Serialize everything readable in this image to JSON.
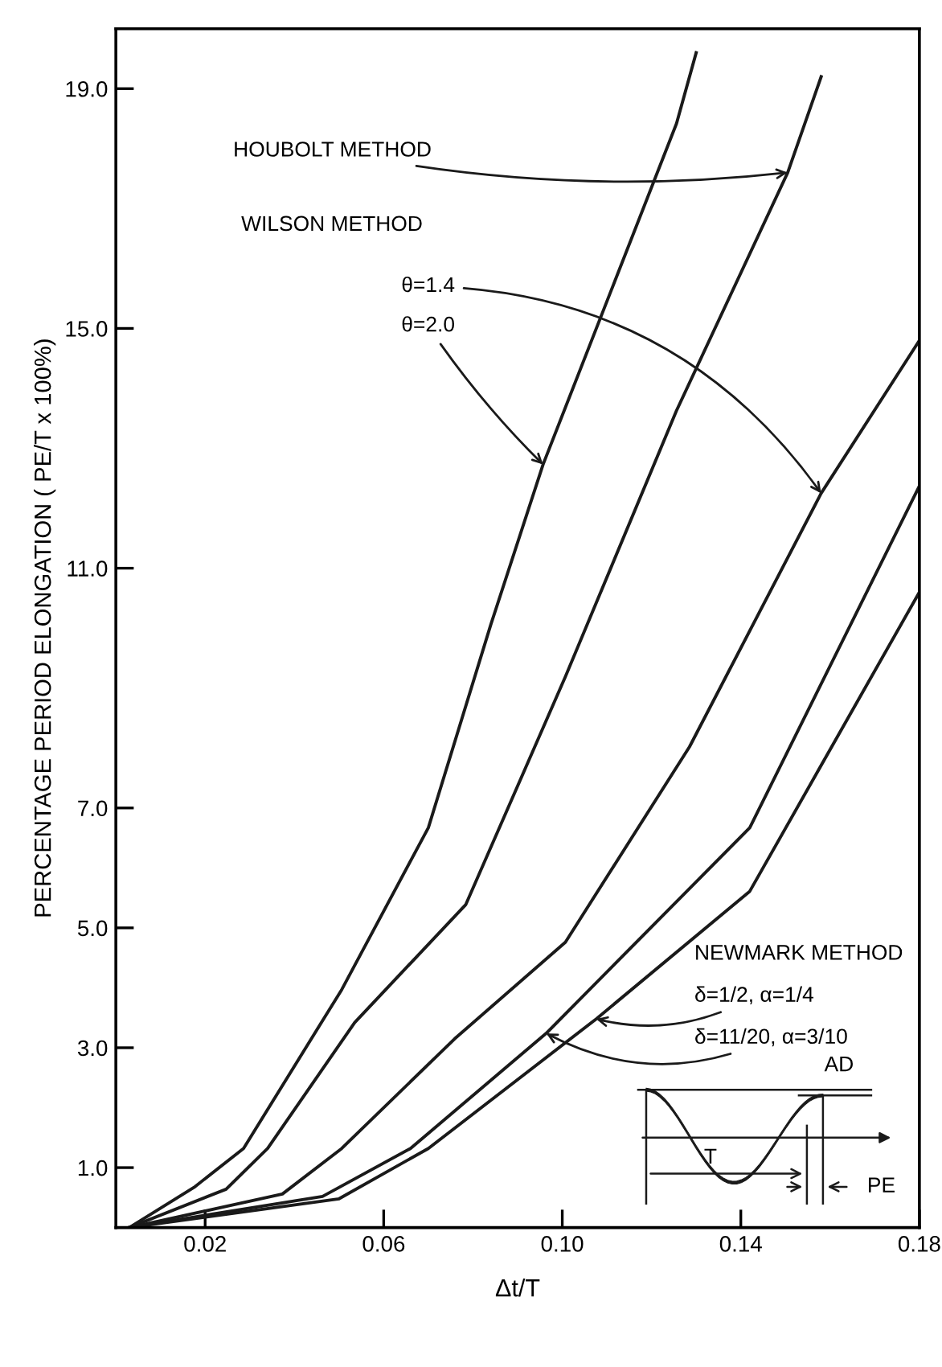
{
  "chart_data": {
    "type": "line",
    "xlabel": "Δt/T",
    "ylabel": "PERCENTAGE PERIOD ELONGATION ( PE/T x 100%)",
    "xlim": [
      0,
      0.18
    ],
    "ylim": [
      0,
      20
    ],
    "xticks": [
      {
        "value": 0.02,
        "label": "0.02"
      },
      {
        "value": 0.06,
        "label": "0.06"
      },
      {
        "value": 0.1,
        "label": "0.10"
      },
      {
        "value": 0.14,
        "label": "0.14"
      },
      {
        "value": 0.18,
        "label": "0.18"
      }
    ],
    "yticks": [
      {
        "value": 1,
        "label": "1.0"
      },
      {
        "value": 3,
        "label": "3.0"
      },
      {
        "value": 5,
        "label": "5.0"
      },
      {
        "value": 7,
        "label": "7.0"
      },
      {
        "value": 11,
        "label": "11.0"
      },
      {
        "value": 15,
        "label": "15.0"
      },
      {
        "value": 19,
        "label": "19.0"
      }
    ],
    "grid": false,
    "legend": false,
    "marker": "none",
    "line_style": "solid",
    "series": [
      {
        "color": "#1a1a1a",
        "x": [
          0.003,
          0.0175,
          0.0286,
          0.0506,
          0.07,
          0.084,
          0.0957,
          0.1256,
          0.13
        ],
        "values": [
          0,
          0.67,
          1.32,
          3.97,
          6.67,
          10.06,
          12.73,
          18.42,
          19.6
        ]
      },
      {
        "color": "#1a1a1a",
        "x": [
          0.003,
          0.0247,
          0.034,
          0.0535,
          0.0784,
          0.1007,
          0.1256,
          0.1505,
          0.158
        ],
        "values": [
          0,
          0.64,
          1.32,
          3.42,
          5.39,
          9.19,
          13.63,
          17.6,
          19.2
        ]
      },
      {
        "color": "#1a1a1a",
        "x": [
          0.003,
          0.0373,
          0.0506,
          0.0759,
          0.1007,
          0.1285,
          0.158,
          0.18
        ],
        "values": [
          0,
          0.56,
          1.32,
          3.15,
          4.76,
          8.02,
          12.25,
          14.8
        ]
      },
      {
        "color": "#1a1a1a",
        "x": [
          0.003,
          0.0463,
          0.066,
          0.0964,
          0.142,
          0.18
        ],
        "values": [
          0,
          0.52,
          1.32,
          3.24,
          6.67,
          12.37
        ]
      },
      {
        "color": "#1a1a1a",
        "x": [
          0.003,
          0.05,
          0.07,
          0.1076,
          0.142,
          0.18
        ],
        "values": [
          0,
          0.48,
          1.32,
          3.48,
          5.61,
          10.6
        ]
      }
    ],
    "annotations": [
      {
        "text": "HOUBOLT METHOD",
        "x": 0.1505,
        "y": 17.6
      },
      "WILSON METHOD",
      {
        "text": "θ=1.4",
        "x": 0.158,
        "y": 12.25
      },
      {
        "text": "θ=2.0",
        "x": 0.0957,
        "y": 12.73
      },
      "NEWMARK METHOD",
      {
        "text": "δ=1/2, α=1/4",
        "x": 0.1076,
        "y": 3.48
      },
      {
        "text": "δ=11/20, α=3/10",
        "x": 0.0964,
        "y": 3.24
      },
      "AD",
      "T",
      "PE"
    ]
  }
}
